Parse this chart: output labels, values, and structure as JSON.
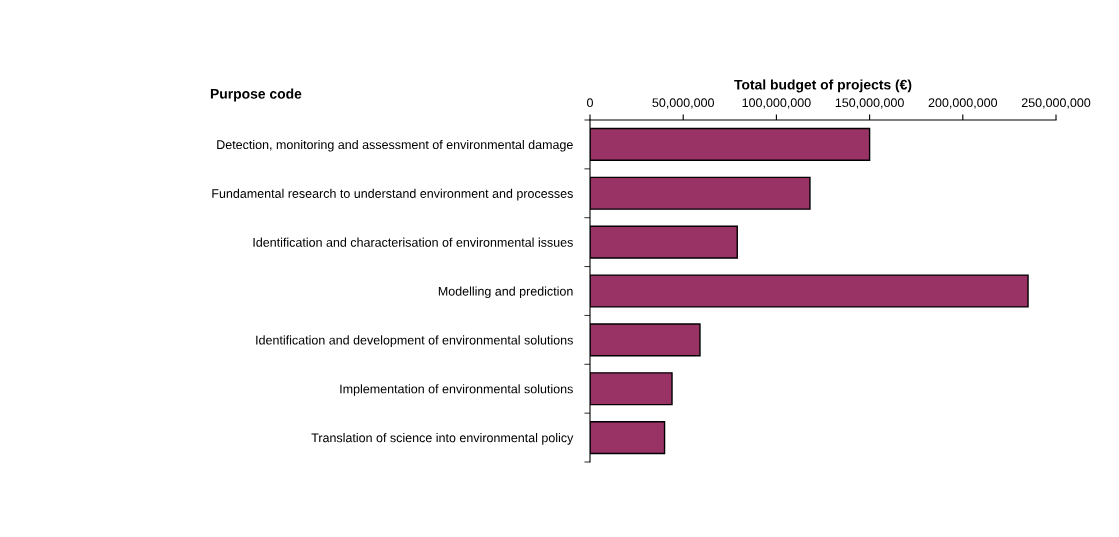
{
  "chart_data": {
    "type": "bar",
    "orientation": "horizontal",
    "title": "Total budget of projects (€)",
    "ylabel": "Purpose code",
    "categories": [
      "Detection, monitoring and assessment of environmental damage",
      "Fundamental research to understand environment and processes",
      "Identification and characterisation of environmental issues",
      "Modelling and prediction",
      "Identification and development of environmental solutions",
      "Implementation of environmental solutions",
      "Translation of science into environmental policy"
    ],
    "values": [
      150000000,
      118000000,
      79000000,
      235000000,
      59000000,
      44000000,
      40000000
    ],
    "color": "#993366",
    "xlim": [
      0,
      250000000
    ],
    "xticks": [
      0,
      {
        "value": 50000000,
        "label": "50,000,000"
      },
      {
        "value": 100000000,
        "label": "100,000,000"
      },
      {
        "value": 150000000,
        "label": "150,000,000"
      },
      {
        "value": 200000000,
        "label": "200,000,000"
      },
      {
        "value": 250000000,
        "label": "250,000,000"
      }
    ],
    "grid": false,
    "legend": false
  }
}
